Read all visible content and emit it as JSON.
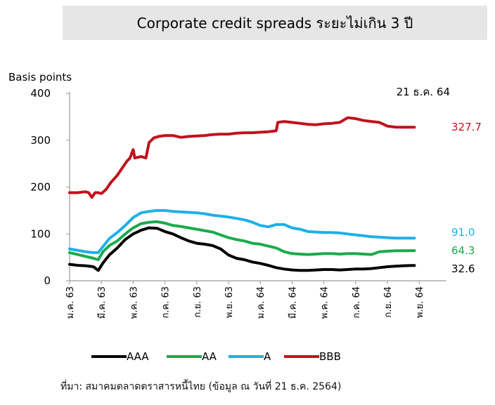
{
  "title": "Corporate credit spreads ระยะไม่เกิน 3 ปี",
  "source": "ที่มา: สมาคมตลาดตราสารหนี้ไทย (ข้อมูล ณ วันที่ 21 ธ.ค. 2564)",
  "chart_data": {
    "type": "line",
    "ylabel": "Basis points",
    "ylim": [
      0,
      400
    ],
    "yticks": [
      0,
      100,
      200,
      300,
      400
    ],
    "date_annotation": "21 ธ.ค. 64",
    "xticks": [
      "ม.ค. 63",
      "มี.ค. 63",
      "พ.ค. 63",
      "ก.ค. 63",
      "ก.ย. 63",
      "พ.ย. 63",
      "ม.ค. 64",
      "มี.ค. 64",
      "พ.ค. 64",
      "ก.ค. 64",
      "ก.ย. 64",
      "พ.ย. 64"
    ],
    "x_unit": "month index (0 = ม.ค. 63)",
    "legend_position": "bottom",
    "grid": false,
    "series": [
      {
        "name": "AAA",
        "color": "#000000",
        "end_label": "32.6",
        "points": [
          [
            0,
            35
          ],
          [
            0.5,
            33
          ],
          [
            1,
            32
          ],
          [
            1.5,
            30
          ],
          [
            1.8,
            22
          ],
          [
            2.1,
            38
          ],
          [
            2.5,
            55
          ],
          [
            3,
            70
          ],
          [
            3.5,
            88
          ],
          [
            4,
            100
          ],
          [
            4.5,
            108
          ],
          [
            5,
            113
          ],
          [
            5.5,
            112
          ],
          [
            6,
            105
          ],
          [
            6.5,
            100
          ],
          [
            7,
            92
          ],
          [
            7.5,
            85
          ],
          [
            8,
            80
          ],
          [
            8.5,
            78
          ],
          [
            9,
            75
          ],
          [
            9.5,
            68
          ],
          [
            10,
            55
          ],
          [
            10.5,
            48
          ],
          [
            11,
            45
          ],
          [
            11.5,
            40
          ],
          [
            12,
            37
          ],
          [
            12.5,
            33
          ],
          [
            13,
            28
          ],
          [
            13.5,
            25
          ],
          [
            14,
            23
          ],
          [
            14.5,
            22
          ],
          [
            15,
            22
          ],
          [
            15.5,
            23
          ],
          [
            16,
            24
          ],
          [
            16.5,
            24
          ],
          [
            17,
            23
          ],
          [
            17.5,
            24
          ],
          [
            18,
            25
          ],
          [
            18.5,
            25
          ],
          [
            19,
            26
          ],
          [
            19.5,
            28
          ],
          [
            20,
            30
          ],
          [
            20.5,
            31
          ],
          [
            21,
            32
          ],
          [
            21.5,
            32.6
          ],
          [
            21.7,
            32.6
          ]
        ]
      },
      {
        "name": "AA",
        "color": "#1aab4b",
        "end_label": "64.3",
        "points": [
          [
            0,
            60
          ],
          [
            0.5,
            56
          ],
          [
            1,
            52
          ],
          [
            1.5,
            48
          ],
          [
            1.8,
            45
          ],
          [
            2.1,
            62
          ],
          [
            2.5,
            75
          ],
          [
            3,
            85
          ],
          [
            3.5,
            100
          ],
          [
            4,
            113
          ],
          [
            4.5,
            122
          ],
          [
            5,
            125
          ],
          [
            5.5,
            126
          ],
          [
            6,
            123
          ],
          [
            6.5,
            118
          ],
          [
            7,
            116
          ],
          [
            7.5,
            113
          ],
          [
            8,
            110
          ],
          [
            8.5,
            107
          ],
          [
            9,
            104
          ],
          [
            9.5,
            98
          ],
          [
            10,
            92
          ],
          [
            10.5,
            88
          ],
          [
            11,
            85
          ],
          [
            11.5,
            80
          ],
          [
            12,
            78
          ],
          [
            12.5,
            74
          ],
          [
            13,
            70
          ],
          [
            13.5,
            62
          ],
          [
            14,
            58
          ],
          [
            14.5,
            57
          ],
          [
            15,
            56
          ],
          [
            15.5,
            57
          ],
          [
            16,
            58
          ],
          [
            16.5,
            58
          ],
          [
            17,
            57
          ],
          [
            17.5,
            58
          ],
          [
            18,
            58
          ],
          [
            18.5,
            57
          ],
          [
            19,
            56
          ],
          [
            19.5,
            62
          ],
          [
            20,
            63
          ],
          [
            20.5,
            64
          ],
          [
            21,
            64
          ],
          [
            21.5,
            64.3
          ],
          [
            21.7,
            64.3
          ]
        ]
      },
      {
        "name": "A",
        "color": "#1fb0e8",
        "end_label": "91.0",
        "points": [
          [
            0,
            68
          ],
          [
            0.5,
            65
          ],
          [
            1,
            62
          ],
          [
            1.5,
            60
          ],
          [
            1.8,
            60
          ],
          [
            2.1,
            73
          ],
          [
            2.5,
            90
          ],
          [
            3,
            103
          ],
          [
            3.5,
            118
          ],
          [
            4,
            135
          ],
          [
            4.5,
            145
          ],
          [
            5,
            148
          ],
          [
            5.5,
            150
          ],
          [
            6,
            150
          ],
          [
            6.5,
            148
          ],
          [
            7,
            147
          ],
          [
            7.5,
            146
          ],
          [
            8,
            145
          ],
          [
            8.5,
            143
          ],
          [
            9,
            140
          ],
          [
            9.5,
            138
          ],
          [
            10,
            136
          ],
          [
            10.5,
            133
          ],
          [
            11,
            130
          ],
          [
            11.5,
            125
          ],
          [
            12,
            118
          ],
          [
            12.5,
            115
          ],
          [
            13,
            120
          ],
          [
            13.5,
            120
          ],
          [
            14,
            113
          ],
          [
            14.5,
            110
          ],
          [
            15,
            105
          ],
          [
            15.5,
            104
          ],
          [
            16,
            103
          ],
          [
            16.5,
            103
          ],
          [
            17,
            102
          ],
          [
            17.5,
            100
          ],
          [
            18,
            98
          ],
          [
            18.5,
            96
          ],
          [
            19,
            94
          ],
          [
            19.5,
            93
          ],
          [
            20,
            92
          ],
          [
            20.5,
            91
          ],
          [
            21,
            91
          ],
          [
            21.5,
            91
          ],
          [
            21.7,
            91
          ]
        ]
      },
      {
        "name": "BBB",
        "color": "#c0121c",
        "end_label": "327.7",
        "points": [
          [
            0,
            188
          ],
          [
            0.5,
            188
          ],
          [
            1,
            190
          ],
          [
            1.2,
            188
          ],
          [
            1.4,
            178
          ],
          [
            1.6,
            188
          ],
          [
            1.8,
            188
          ],
          [
            2,
            186
          ],
          [
            2.3,
            195
          ],
          [
            2.6,
            210
          ],
          [
            3,
            225
          ],
          [
            3.3,
            240
          ],
          [
            3.6,
            255
          ],
          [
            3.8,
            262
          ],
          [
            4,
            280
          ],
          [
            4.1,
            262
          ],
          [
            4.5,
            265
          ],
          [
            4.8,
            262
          ],
          [
            5,
            295
          ],
          [
            5.3,
            305
          ],
          [
            5.6,
            308
          ],
          [
            6,
            310
          ],
          [
            6.5,
            310
          ],
          [
            7,
            306
          ],
          [
            7.5,
            308
          ],
          [
            8,
            309
          ],
          [
            8.5,
            310
          ],
          [
            9,
            312
          ],
          [
            9.5,
            313
          ],
          [
            10,
            313
          ],
          [
            10.5,
            315
          ],
          [
            11,
            316
          ],
          [
            11.5,
            316
          ],
          [
            12,
            317
          ],
          [
            12.5,
            318
          ],
          [
            13,
            320
          ],
          [
            13.1,
            338
          ],
          [
            13.5,
            340
          ],
          [
            14,
            338
          ],
          [
            14.5,
            336
          ],
          [
            15,
            334
          ],
          [
            15.5,
            333
          ],
          [
            16,
            335
          ],
          [
            16.5,
            336
          ],
          [
            17,
            338
          ],
          [
            17.5,
            348
          ],
          [
            18,
            346
          ],
          [
            18.5,
            342
          ],
          [
            19,
            340
          ],
          [
            19.5,
            338
          ],
          [
            20,
            330
          ],
          [
            20.5,
            328
          ],
          [
            21,
            327.7
          ],
          [
            21.5,
            327.7
          ],
          [
            21.7,
            327.7
          ]
        ]
      }
    ]
  }
}
